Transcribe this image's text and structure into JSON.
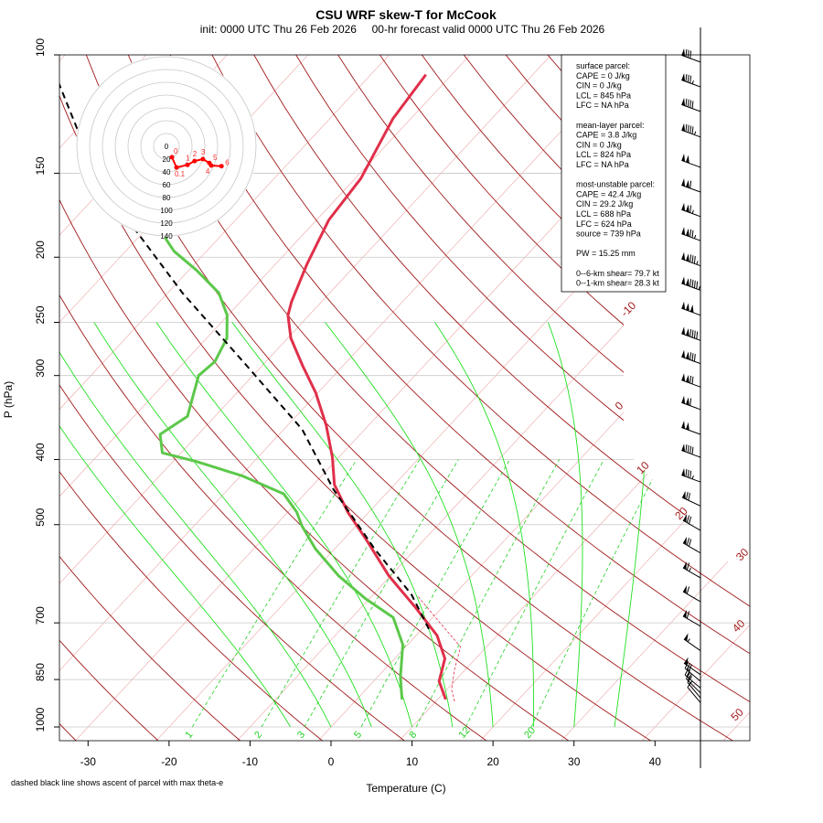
{
  "chart_data": {
    "type": "line",
    "title": "CSU WRF skew-T for McCook",
    "subtitle": "init: 0000 UTC Thu 26 Feb 2026     00-hr forecast valid 0000 UTC Thu 26 Feb 2026",
    "xlabel": "Temperature (C)",
    "ylabel": "P (hPa)",
    "footnote": "dashed black line shows ascent of parcel with max theta-e",
    "x_ticks": [
      "-30",
      "-20",
      "-10",
      "0",
      "10",
      "20",
      "30",
      "40"
    ],
    "x_tick_values": [
      -30,
      -20,
      -10,
      0,
      10,
      20,
      30,
      40
    ],
    "y_ticks": [
      "100",
      "150",
      "200",
      "250",
      "300",
      "400",
      "500",
      "700",
      "850",
      "1000"
    ],
    "y_tick_values": [
      100,
      150,
      200,
      250,
      300,
      400,
      500,
      700,
      850,
      1000
    ],
    "xlim": [
      -33,
      52
    ],
    "ylim": [
      1000,
      100
    ],
    "y_scale": "log",
    "skewed": true,
    "isotherm_labels": [
      "-10",
      "0",
      "10",
      "20",
      "30",
      "40",
      "50"
    ],
    "isotherm_label_values": [
      -10,
      0,
      10,
      20,
      30,
      40,
      50
    ],
    "mixing_ratio_labels": [
      "1",
      "2",
      "3",
      "5",
      "8",
      "12",
      "20"
    ],
    "mixing_ratio_values": [
      1,
      2,
      3,
      5,
      8,
      12,
      20
    ],
    "colors": {
      "temperature": "#e0304a",
      "dewpoint": "#5cc84a",
      "parcel": "#000000",
      "dry_adiabat": "#a01818",
      "isotherm": "#f0b0b0",
      "isobar": "#c8c8c8",
      "moist_adiabat": "#20e020",
      "mixing_ratio": "#20d020"
    },
    "series": [
      {
        "key": "temperature",
        "style": "solid",
        "p": [
          107,
          124.5,
          152.7,
          176,
          205,
          233,
          244,
          264,
          290,
          318,
          356,
          397,
          436,
          479,
          526,
          596,
          665,
          731,
          791,
          855,
          910
        ],
        "t": [
          -63.2,
          -62.2,
          -59.3,
          -58.5,
          -56.1,
          -53.7,
          -52.6,
          -49.6,
          -45.0,
          -40.3,
          -35.2,
          -30.8,
          -27.4,
          -22.6,
          -17.2,
          -10.2,
          -3.2,
          2.6,
          6.2,
          8.1,
          11.0
        ]
      },
      {
        "key": "dewpoint",
        "style": "solid",
        "p": [
          187,
          196,
          209,
          226,
          244,
          264,
          286,
          300,
          345,
          367,
          391,
          403,
          423,
          450,
          479,
          502,
          543,
          596,
          645,
          687,
          754,
          842,
          910
        ],
        "t": [
          -76.7,
          -74.0,
          -69.1,
          -63.7,
          -60.1,
          -57.5,
          -56.3,
          -56.7,
          -53.4,
          -54.7,
          -52.3,
          -47.0,
          -39.8,
          -32.6,
          -28.9,
          -26.7,
          -22.4,
          -16.4,
          -10.4,
          -4.9,
          -0.6,
          2.8,
          5.6
        ]
      },
      {
        "key": "parcel",
        "style": "dashed",
        "p": [
          106,
          133,
          176,
          226,
          290,
          361,
          443,
          543,
          635,
          720
        ],
        "t": [
          -109.4,
          -98.5,
          -83.3,
          -68.2,
          -51.9,
          -37.7,
          -27.0,
          -15.1,
          -5.3,
          1.2
        ]
      },
      {
        "key": "virtual-temperature",
        "style": "thin-dashed",
        "p": [
          640,
          700,
          760,
          820,
          880,
          920
        ],
        "t": [
          -4.2,
          1.5,
          6.8,
          8.6,
          10.6,
          12.5
        ]
      }
    ],
    "wind_barbs": {
      "p": [
        102.5,
        111.6,
        121.4,
        132.5,
        147,
        160,
        174,
        189,
        206,
        224,
        244,
        266,
        288,
        312,
        337,
        367,
        397,
        432,
        469,
        510,
        551,
        600,
        651,
        708,
        770,
        836,
        855,
        875,
        890,
        905,
        920
      ],
      "speed_kt": [
        80,
        85,
        90,
        95,
        100,
        110,
        115,
        125,
        135,
        145,
        150,
        140,
        130,
        120,
        110,
        100,
        90,
        85,
        70,
        70,
        70,
        65,
        60,
        60,
        55,
        50,
        30,
        25,
        20,
        15,
        10
      ],
      "direction_deg": [
        290,
        290,
        290,
        290,
        290,
        290,
        290,
        290,
        290,
        290,
        290,
        290,
        290,
        290,
        290,
        290,
        290,
        290,
        295,
        300,
        300,
        300,
        300,
        300,
        305,
        305,
        310,
        310,
        315,
        320,
        320
      ]
    },
    "hodograph": {
      "ring_labels": [
        "0",
        "20",
        "40",
        "60",
        "80",
        "100",
        "120",
        "140"
      ],
      "ring_values": [
        0,
        20,
        40,
        60,
        80,
        100,
        120,
        140
      ],
      "u_kt": [
        8.6,
        15.7,
        33,
        44,
        57,
        67,
        70,
        86
      ],
      "v_kt": [
        -17,
        -33,
        -29,
        -23,
        -20,
        -26,
        -30,
        -31
      ],
      "point_labels": [
        "0",
        "0.1",
        "1",
        "2",
        "3",
        "4",
        "5",
        "6"
      ]
    }
  },
  "legend": {
    "lines": [
      "surface parcel:",
      "CAPE = 0 J/kg",
      "CIN = 0 J/kg",
      "LCL = 845 hPa",
      "LFC = NA hPa",
      "",
      "mean-layer parcel:",
      "CAPE = 3.8 J/kg",
      "CIN = 0 J/kg",
      "LCL = 824 hPa",
      "LFC = NA hPa",
      "",
      "most-unstable parcel:",
      "CAPE = 42.4 J/kg",
      "CIN = 29.2 J/kg",
      "LCL = 688 hPa",
      "LFC = 624 hPa",
      "source = 739 hPa",
      "",
      "PW =  15.25 mm",
      "",
      "0--6-km shear= 79.7 kt",
      "0--1-km shear= 28.3 kt"
    ]
  }
}
